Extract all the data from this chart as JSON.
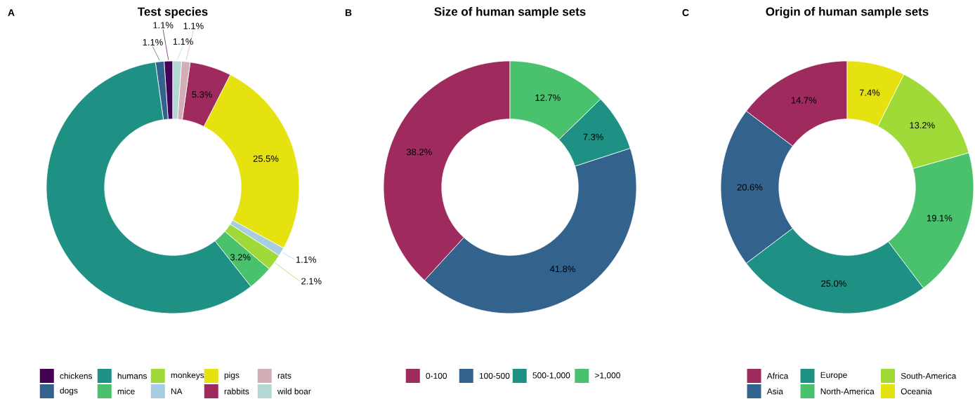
{
  "chart_data": [
    {
      "type": "donut",
      "title": "Test species",
      "annotations": [
        "A"
      ],
      "legend": "bottom",
      "categories": [
        "chickens",
        "dogs",
        "humans",
        "mice",
        "monkeys",
        "NA",
        "pigs",
        "rabbits",
        "rats",
        "wild boar"
      ],
      "values": [
        1.1,
        1.1,
        58.4,
        3.2,
        2.1,
        1.1,
        25.5,
        5.3,
        1.1,
        1.1
      ],
      "value_labels": [
        "1.1%",
        "1.1%",
        null,
        "3.2%",
        "2.1%",
        "1.1%",
        "25.5%",
        "5.3%",
        "1.1%",
        "1.1%"
      ],
      "colors": [
        "#440154",
        "#33638d",
        "#1f9184",
        "#4ac16d",
        "#a0da39",
        "#a6cde2",
        "#e6e20f",
        "#9e2a5e",
        "#d4adb6",
        "#b4d7d4"
      ]
    },
    {
      "type": "donut",
      "title": "Size of human sample sets",
      "annotations": [
        "B"
      ],
      "legend": "bottom",
      "categories": [
        "0-100",
        "100-500",
        "500-1,000",
        ">1,000"
      ],
      "values": [
        38.2,
        41.8,
        7.3,
        12.7
      ],
      "value_labels": [
        "38.2%",
        "41.8%",
        "7.3%",
        "12.7%"
      ],
      "colors": [
        "#9e2a5e",
        "#33638d",
        "#1f9184",
        "#4ac16d"
      ]
    },
    {
      "type": "donut",
      "title": "Origin of human sample sets",
      "annotations": [
        "C"
      ],
      "legend": "bottom",
      "categories": [
        "Africa",
        "Asia",
        "Europe",
        "North-America",
        "South-America",
        "Oceania"
      ],
      "values": [
        14.7,
        20.6,
        25.0,
        19.1,
        13.2,
        7.4
      ],
      "value_labels": [
        "14.7%",
        "20.6%",
        "25.0%",
        "19.1%",
        "13.2%",
        "7.4%"
      ],
      "colors": [
        "#9e2a5e",
        "#33638d",
        "#1f9184",
        "#4ac16d",
        "#a0da39",
        "#e6e20f"
      ]
    }
  ]
}
